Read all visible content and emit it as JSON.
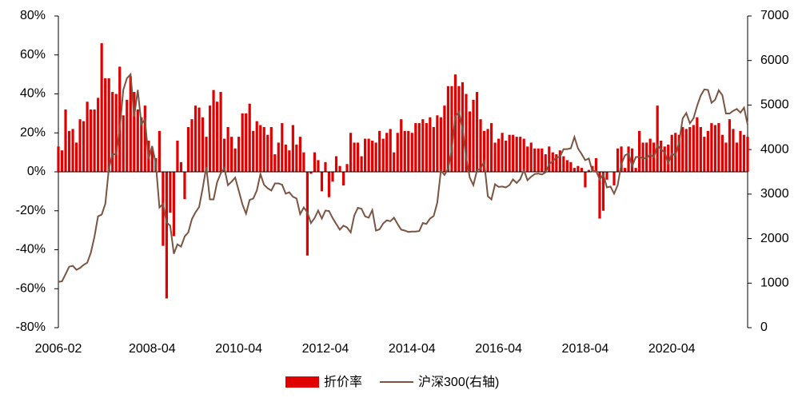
{
  "chart_data": {
    "type": "bar",
    "x": [
      "2006-02",
      "2006-03",
      "2006-04",
      "2006-05",
      "2006-06",
      "2006-07",
      "2006-08",
      "2006-09",
      "2006-10",
      "2006-11",
      "2006-12",
      "2007-01",
      "2007-02",
      "2007-03",
      "2007-04",
      "2007-05",
      "2007-06",
      "2007-07",
      "2007-08",
      "2007-09",
      "2007-10",
      "2007-11",
      "2007-12",
      "2008-01",
      "2008-02",
      "2008-03",
      "2008-04",
      "2008-05",
      "2008-06",
      "2008-07",
      "2008-08",
      "2008-09",
      "2008-10",
      "2008-11",
      "2008-12",
      "2009-01",
      "2009-02",
      "2009-03",
      "2009-04",
      "2009-05",
      "2009-06",
      "2009-07",
      "2009-08",
      "2009-09",
      "2009-10",
      "2009-11",
      "2009-12",
      "2010-01",
      "2010-02",
      "2010-03",
      "2010-04",
      "2010-05",
      "2010-06",
      "2010-07",
      "2010-08",
      "2010-09",
      "2010-10",
      "2010-11",
      "2010-12",
      "2011-01",
      "2011-02",
      "2011-03",
      "2011-04",
      "2011-05",
      "2011-06",
      "2011-07",
      "2011-08",
      "2011-09",
      "2011-10",
      "2011-11",
      "2011-12",
      "2012-01",
      "2012-02",
      "2012-03",
      "2012-04",
      "2012-05",
      "2012-06",
      "2012-07",
      "2012-08",
      "2012-09",
      "2012-10",
      "2012-11",
      "2012-12",
      "2013-01",
      "2013-02",
      "2013-03",
      "2013-04",
      "2013-05",
      "2013-06",
      "2013-07",
      "2013-08",
      "2013-09",
      "2013-10",
      "2013-11",
      "2013-12",
      "2014-01",
      "2014-02",
      "2014-03",
      "2014-04",
      "2014-05",
      "2014-06",
      "2014-07",
      "2014-08",
      "2014-09",
      "2014-10",
      "2014-11",
      "2014-12",
      "2015-01",
      "2015-02",
      "2015-03",
      "2015-04",
      "2015-05",
      "2015-06",
      "2015-07",
      "2015-08",
      "2015-09",
      "2015-10",
      "2015-11",
      "2015-12",
      "2016-01",
      "2016-02",
      "2016-03",
      "2016-04",
      "2016-05",
      "2016-06",
      "2016-07",
      "2016-08",
      "2016-09",
      "2016-10",
      "2016-11",
      "2016-12",
      "2017-01",
      "2017-02",
      "2017-03",
      "2017-04",
      "2017-05",
      "2017-06",
      "2017-07",
      "2017-08",
      "2017-09",
      "2017-10",
      "2017-11",
      "2017-12",
      "2018-01",
      "2018-02",
      "2018-03",
      "2018-04",
      "2018-05",
      "2018-06",
      "2018-07",
      "2018-08",
      "2018-09",
      "2018-10",
      "2018-11",
      "2018-12",
      "2019-01",
      "2019-02",
      "2019-03",
      "2019-04",
      "2019-05",
      "2019-06",
      "2019-07",
      "2019-08",
      "2019-09",
      "2019-10",
      "2019-11",
      "2019-12",
      "2020-01",
      "2020-02",
      "2020-03",
      "2020-04",
      "2020-05",
      "2020-06",
      "2020-07",
      "2020-08",
      "2020-09",
      "2020-10",
      "2020-11",
      "2020-12",
      "2021-01",
      "2021-02",
      "2021-03",
      "2021-04",
      "2021-05",
      "2021-06",
      "2021-07",
      "2021-08",
      "2021-09",
      "2021-10",
      "2021-11",
      "2021-12",
      "2022-01"
    ],
    "xticks": [
      "2006-02",
      "2008-04",
      "2010-04",
      "2012-04",
      "2014-04",
      "2016-04",
      "2018-04",
      "2020-04"
    ],
    "series": [
      {
        "name": "折价率",
        "type": "bar",
        "color": "#e00000",
        "values": [
          13,
          11,
          32,
          21,
          22,
          15,
          27,
          26,
          36,
          32,
          32,
          38,
          66,
          48,
          48,
          41,
          40,
          54,
          29,
          37,
          49,
          41,
          32,
          28,
          34,
          16,
          12,
          7,
          21,
          -38,
          -65,
          -21,
          -33,
          16,
          5,
          -14,
          23,
          27,
          34,
          33,
          28,
          18,
          34,
          42,
          36,
          41,
          17,
          23,
          18,
          12,
          18,
          30,
          30,
          35,
          21,
          26,
          24,
          23,
          19,
          23,
          9,
          15,
          25,
          14,
          11,
          24,
          14,
          18,
          10,
          -43,
          -1,
          10,
          6,
          -10,
          5,
          -13,
          -5,
          8,
          3,
          -7,
          4,
          20,
          15,
          15,
          8,
          17,
          17,
          16,
          15,
          21,
          17,
          20,
          22,
          10,
          20,
          27,
          21,
          21,
          20,
          25,
          25,
          27,
          25,
          28,
          23,
          29,
          28,
          34,
          44,
          44,
          50,
          44,
          46,
          40,
          31,
          37,
          41,
          27,
          21,
          22,
          25,
          15,
          17,
          20,
          16,
          19,
          19,
          18,
          18,
          17,
          13,
          15,
          12,
          12,
          12,
          9,
          13,
          10,
          9,
          11,
          8,
          6,
          5,
          2,
          3,
          2,
          -8,
          1,
          3,
          7,
          -24,
          -20,
          -4,
          0,
          -7,
          12,
          13,
          2,
          13,
          12,
          2,
          21,
          15,
          15,
          17,
          15,
          34,
          16,
          13,
          14,
          19,
          20,
          19,
          23,
          22,
          23,
          24,
          28,
          23,
          18,
          21,
          25,
          24,
          25,
          19,
          15,
          27,
          22,
          15,
          21,
          19,
          18
        ]
      },
      {
        "name": "沪深300(右轴)",
        "type": "line",
        "color": "#7b5442",
        "axis": "y2",
        "values": [
          1030,
          1040,
          1200,
          1370,
          1390,
          1300,
          1340,
          1410,
          1460,
          1680,
          2040,
          2500,
          2540,
          2780,
          3580,
          3900,
          3890,
          4470,
          5340,
          5600,
          5690,
          4740,
          5340,
          4570,
          4680,
          3790,
          4080,
          3680,
          2700,
          2780,
          2360,
          2290,
          1660,
          1870,
          1820,
          2050,
          2140,
          2440,
          2590,
          2710,
          3130,
          3610,
          2880,
          2880,
          3270,
          3470,
          3580,
          3200,
          3280,
          3370,
          3070,
          2770,
          2560,
          2870,
          2900,
          3080,
          3450,
          3210,
          3130,
          3080,
          3240,
          3240,
          3210,
          3010,
          3040,
          2940,
          2900,
          2550,
          2700,
          2590,
          2350,
          2460,
          2630,
          2450,
          2630,
          2620,
          2460,
          2330,
          2200,
          2290,
          2250,
          2140,
          2520,
          2690,
          2670,
          2500,
          2470,
          2640,
          2180,
          2210,
          2340,
          2410,
          2390,
          2470,
          2330,
          2200,
          2180,
          2150,
          2160,
          2160,
          2170,
          2350,
          2330,
          2450,
          2510,
          2810,
          3530,
          3430,
          3570,
          3990,
          4750,
          4840,
          4470,
          3820,
          3370,
          3200,
          3530,
          3570,
          3730,
          2950,
          2880,
          3220,
          3160,
          3170,
          3150,
          3200,
          3330,
          3250,
          3340,
          3540,
          3310,
          3390,
          3450,
          3460,
          3440,
          3490,
          3670,
          3740,
          3820,
          3840,
          4010,
          4010,
          4030,
          4280,
          4020,
          3900,
          3760,
          3800,
          3510,
          3520,
          3330,
          3440,
          3150,
          3170,
          3010,
          3200,
          3670,
          3870,
          3910,
          3630,
          3830,
          3840,
          3800,
          3810,
          3890,
          3830,
          4100,
          4000,
          3940,
          3690,
          3910,
          3870,
          4160,
          4700,
          4820,
          4590,
          4700,
          4980,
          5210,
          5350,
          5340,
          5050,
          5120,
          5330,
          5220,
          4810,
          4810,
          4870,
          4910,
          4830,
          4940,
          4560
        ]
      }
    ],
    "ylim": [
      -80,
      80
    ],
    "yticks": [
      {
        "value": -80,
        "label": "-80%"
      },
      {
        "value": -60,
        "label": "-60%"
      },
      {
        "value": -40,
        "label": "-40%"
      },
      {
        "value": -20,
        "label": "-20%"
      },
      {
        "value": 0,
        "label": "0%"
      },
      {
        "value": 20,
        "label": "20%"
      },
      {
        "value": 40,
        "label": "40%"
      },
      {
        "value": 60,
        "label": "60%"
      },
      {
        "value": 80,
        "label": "80%"
      }
    ],
    "y2lim": [
      0,
      7000
    ],
    "y2ticks": [
      0,
      1000,
      2000,
      3000,
      4000,
      5000,
      6000,
      7000
    ],
    "legend": "bottom"
  }
}
